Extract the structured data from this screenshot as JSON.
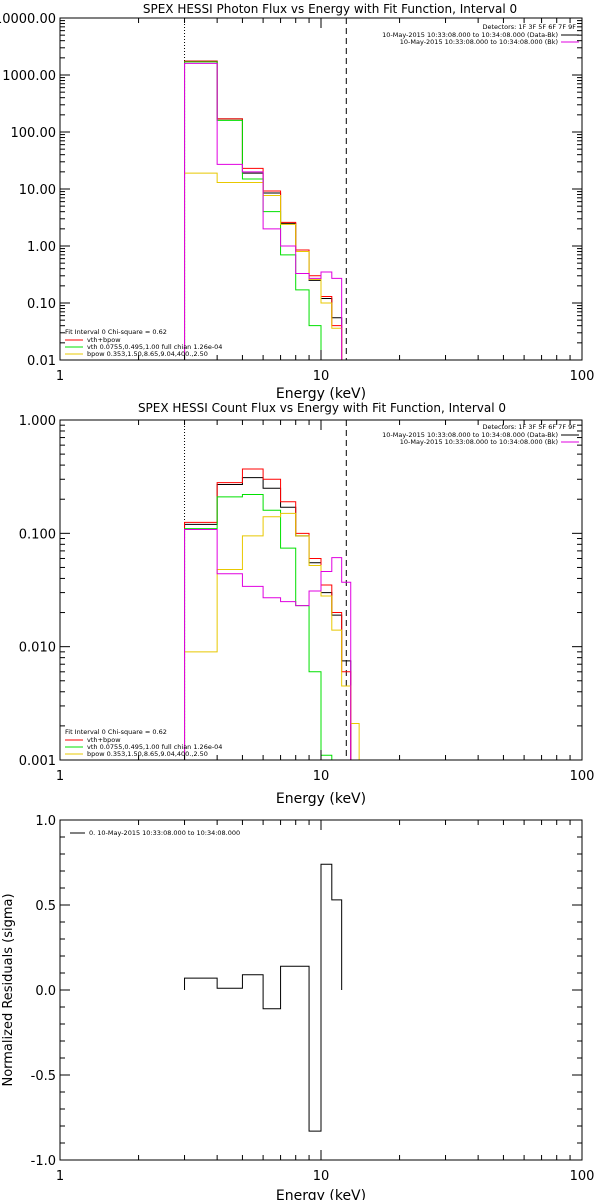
{
  "colors": {
    "background": "#ffffff",
    "axes": "#000000",
    "total": "#000000",
    "vth_plus_bpow": "#ff0000",
    "vth": "#00e000",
    "bpow": "#e8c800",
    "nonthermal_data": "#e000e0"
  },
  "chart_data": [
    {
      "id": "photon",
      "type": "line",
      "step": true,
      "title": "SPEX HESSI Photon Flux vs Energy with Fit Function, Interval 0",
      "xlabel": "Energy (keV)",
      "ylabel": "",
      "xscale": "log",
      "yscale": "log",
      "xlim": [
        1,
        100
      ],
      "ylim": [
        0.01,
        10000
      ],
      "x_ticks": [
        1,
        10,
        100
      ],
      "x_tick_labels": [
        "1",
        "10",
        "100"
      ],
      "y_ticks": [
        0.01,
        0.1,
        1,
        10,
        100,
        1000,
        10000
      ],
      "y_tick_labels": [
        "0.01",
        "0.10",
        "1.00",
        "10.00",
        "100.00",
        "1000.00",
        "10000.00"
      ],
      "grid": false,
      "detectors_text": "Detectors: 1F 3F 5F 6F 7F 9F",
      "legend_top": [
        {
          "label": "10-May-2015 10:33:08.000 to 10:34:08.000 (Data-Bk)",
          "color": "#000000"
        },
        {
          "label": "10-May-2015 10:33:08.000 to 10:34:08.000 (Bk)",
          "color": "#e000e0"
        }
      ],
      "fit_header": "Fit Interval 0   Chi-square = 0.62",
      "legend_bottom": [
        {
          "label": "vth+bpow",
          "color": "#ff0000"
        },
        {
          "label": "vth 0.0755,0.495,1.00  full chian 1.26e-04",
          "color": "#00e000"
        },
        {
          "label": "bpow 0.353,1.50,8.65,9.04,400.,2.50",
          "color": "#e8c800"
        }
      ],
      "vlines": [
        {
          "x": 3,
          "style": "dotted"
        },
        {
          "x": 12.5,
          "style": "dashed"
        }
      ],
      "edges": [
        3,
        4,
        5,
        6,
        7,
        8,
        9,
        10,
        11,
        12,
        13,
        14
      ],
      "series": [
        {
          "name": "Data-Bk",
          "color": "#000000",
          "values": [
            1750,
            170,
            19,
            8.5,
            2.5,
            0.8,
            0.25,
            0.12,
            0.055,
            null,
            null
          ]
        },
        {
          "name": "vth+bpow",
          "color": "#ff0000",
          "values": [
            1750,
            170,
            23,
            9.2,
            2.6,
            0.85,
            0.3,
            0.13,
            0.04,
            null,
            null
          ]
        },
        {
          "name": "vth",
          "color": "#00e000",
          "values": [
            1700,
            160,
            15,
            4,
            0.7,
            0.17,
            0.04,
            0.008,
            null,
            null,
            null
          ]
        },
        {
          "name": "bpow",
          "color": "#e8c800",
          "values": [
            19,
            13,
            13,
            7.7,
            2.4,
            0.8,
            0.26,
            0.1,
            0.036,
            null,
            null
          ]
        },
        {
          "name": "Bk",
          "color": "#e000e0",
          "values": [
            1600,
            27,
            20,
            2,
            1,
            0.33,
            0.27,
            0.35,
            0.27,
            null,
            null
          ]
        }
      ]
    },
    {
      "id": "count",
      "type": "line",
      "step": true,
      "title": "SPEX HESSI Count Flux vs Energy with Fit Function, Interval 0",
      "xlabel": "Energy (keV)",
      "ylabel": "",
      "xscale": "log",
      "yscale": "log",
      "xlim": [
        1,
        100
      ],
      "ylim": [
        0.001,
        1
      ],
      "x_ticks": [
        1,
        10,
        100
      ],
      "x_tick_labels": [
        "1",
        "10",
        "100"
      ],
      "y_ticks": [
        0.001,
        0.01,
        0.1,
        1
      ],
      "y_tick_labels": [
        "0.001",
        "0.010",
        "0.100",
        "1.000"
      ],
      "grid": false,
      "detectors_text": "Detectors: 1F 3F 5F 6F 7F 9F",
      "legend_top": [
        {
          "label": "10-May-2015 10:33:08.000 to 10:34:08.000 (Data-Bk)",
          "color": "#000000"
        },
        {
          "label": "10-May-2015 10:33:08.000 to 10:34:08.000 (Bk)",
          "color": "#e000e0"
        }
      ],
      "fit_header": "Fit Interval 0   Chi-square = 0.62",
      "legend_bottom": [
        {
          "label": "vth+bpow",
          "color": "#ff0000"
        },
        {
          "label": "vth 0.0755,0.495,1.00  full chian 1.26e-04",
          "color": "#00e000"
        },
        {
          "label": "bpow 0.353,1.50,8.65,9.04,400.,2.50",
          "color": "#e8c800"
        }
      ],
      "vlines": [
        {
          "x": 3,
          "style": "dotted"
        },
        {
          "x": 12.5,
          "style": "dashed"
        }
      ],
      "edges": [
        3,
        4,
        5,
        6,
        7,
        8,
        9,
        10,
        11,
        12,
        13,
        14
      ],
      "series": [
        {
          "name": "Data-Bk",
          "color": "#000000",
          "values": [
            0.12,
            0.27,
            0.31,
            0.25,
            0.17,
            0.095,
            0.055,
            0.03,
            0.019,
            0.0075,
            null
          ]
        },
        {
          "name": "vth+bpow",
          "color": "#ff0000",
          "values": [
            0.125,
            0.28,
            0.37,
            0.3,
            0.19,
            0.1,
            0.06,
            0.035,
            0.02,
            0.006,
            null
          ]
        },
        {
          "name": "vth",
          "color": "#00e000",
          "values": [
            0.11,
            0.21,
            0.22,
            0.16,
            0.074,
            0.023,
            0.006,
            0.0011,
            null,
            null,
            null
          ]
        },
        {
          "name": "bpow",
          "color": "#e8c800",
          "values": [
            0.009,
            0.048,
            0.095,
            0.14,
            0.15,
            0.095,
            0.052,
            0.028,
            0.014,
            0.0045,
            0.0021
          ]
        },
        {
          "name": "Bk",
          "color": "#e000e0",
          "values": [
            0.108,
            0.044,
            0.034,
            0.027,
            0.025,
            0.023,
            0.031,
            0.046,
            0.061,
            0.037,
            null
          ]
        }
      ]
    },
    {
      "id": "residuals",
      "type": "line",
      "step": true,
      "title": "",
      "xlabel": "Energy (keV)",
      "ylabel": "Normalized Residuals (sigma)",
      "xscale": "log",
      "yscale": "linear",
      "xlim": [
        1,
        100
      ],
      "ylim": [
        -1,
        1
      ],
      "x_ticks": [
        1,
        10,
        100
      ],
      "x_tick_labels": [
        "1",
        "10",
        "100"
      ],
      "y_ticks": [
        -1,
        -0.5,
        0,
        0.5,
        1
      ],
      "y_tick_labels": [
        "-1.0",
        "-0.5",
        "0.0",
        "0.5",
        "1.0"
      ],
      "grid": false,
      "legend_top_left": [
        {
          "label": "0. 10-May-2015 10:33:08.000 to 10:34:08.000",
          "color": "#000000"
        }
      ],
      "edges": [
        3,
        4,
        5,
        6,
        7,
        8,
        9,
        10,
        11,
        12
      ],
      "series": [
        {
          "name": "0",
          "color": "#000000",
          "values": [
            0.07,
            0.01,
            0.09,
            -0.11,
            0.14,
            0.14,
            -0.83,
            0.74,
            0.53
          ]
        }
      ]
    }
  ]
}
